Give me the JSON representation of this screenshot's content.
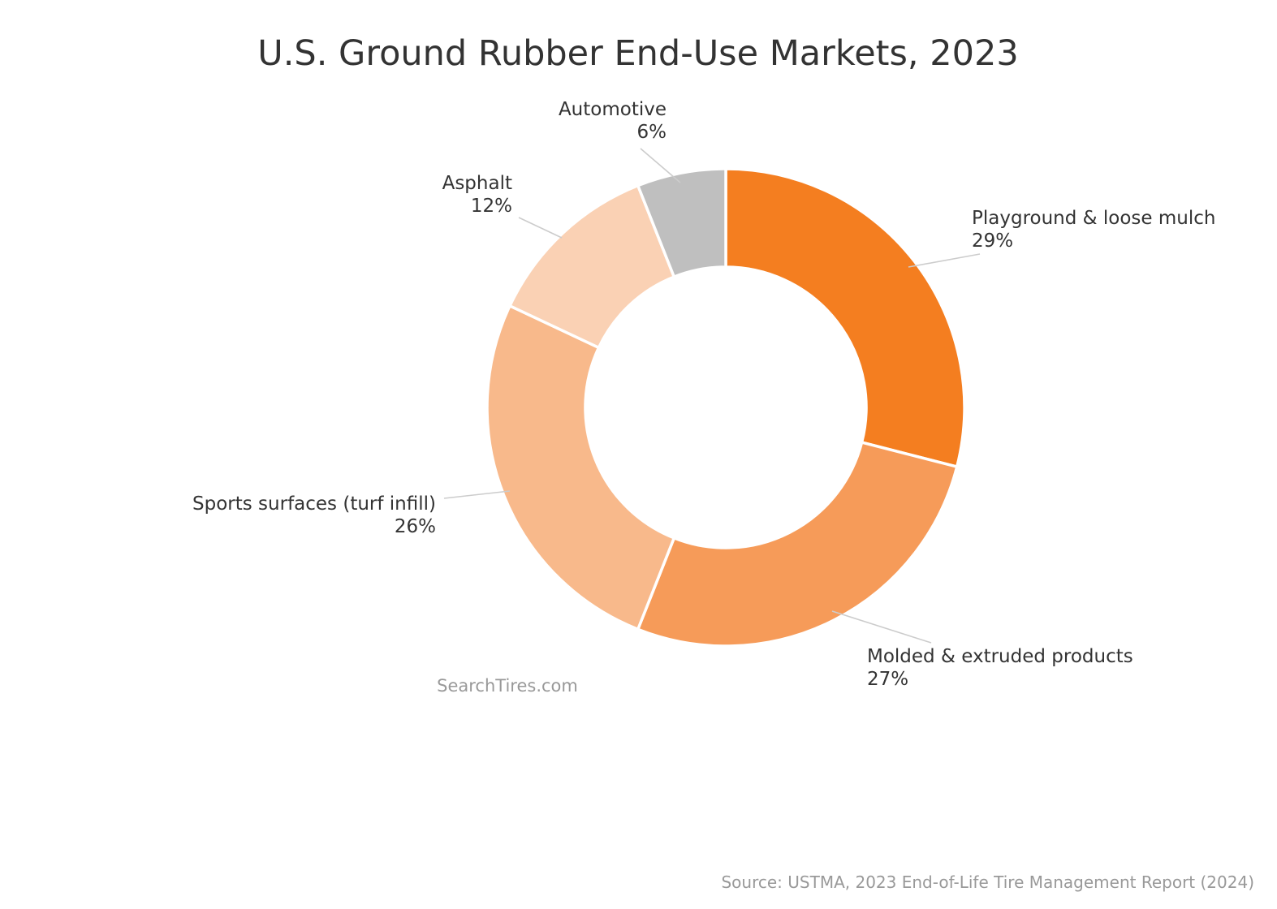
{
  "chart_data": {
    "type": "pie",
    "title": "U.S. Ground Rubber End-Use Markets, 2023",
    "donut": true,
    "start_angle_deg": 90,
    "direction": "clockwise",
    "categories": [
      "Playground & loose mulch",
      "Molded & extruded products",
      "Sports surfaces (turf infill)",
      "Asphalt",
      "Automotive"
    ],
    "values": [
      29,
      27,
      26,
      12,
      6
    ],
    "value_labels": [
      "29%",
      "27%",
      "26%",
      "12%",
      "6%"
    ],
    "colors": [
      "#f47e20",
      "#f69b59",
      "#f8b98b",
      "#fad1b4",
      "#bfbfbf"
    ],
    "legend": "none"
  },
  "watermark": "SearchTires.com",
  "source": "Source: USTMA, 2023 End-of-Life Tire Management Report (2024)"
}
